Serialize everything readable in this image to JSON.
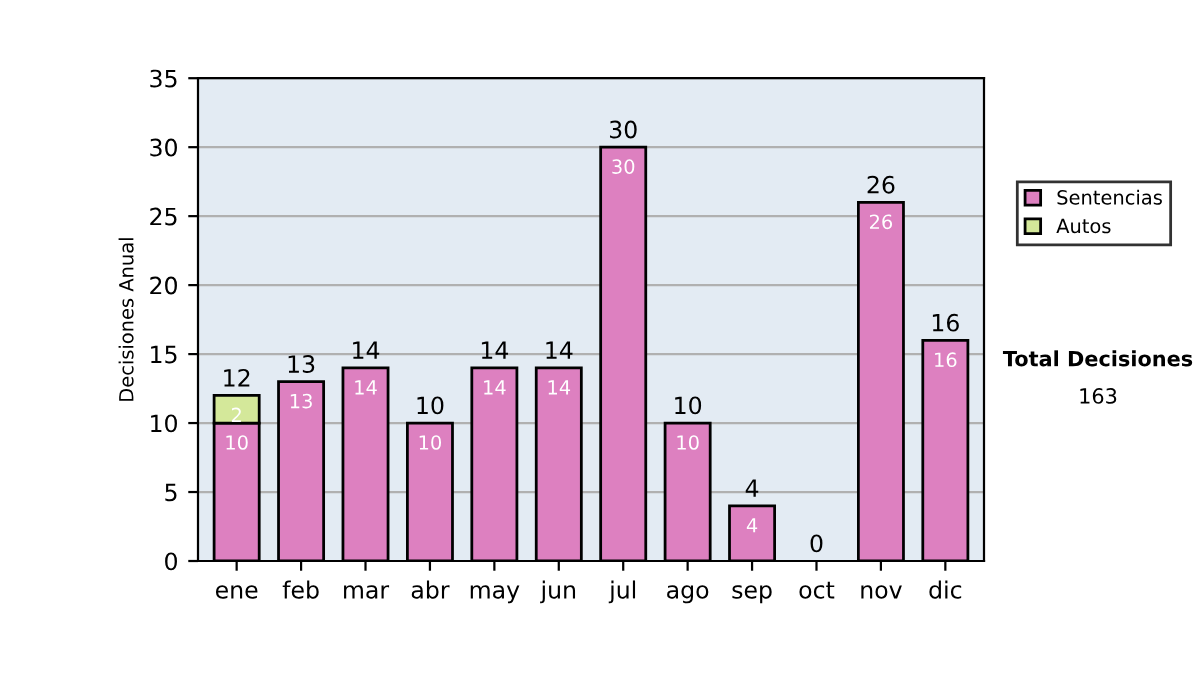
{
  "chart_data": {
    "type": "bar",
    "stacked": true,
    "ylabel": "Decisiones Anual",
    "categories": [
      "ene",
      "feb",
      "mar",
      "abr",
      "may",
      "jun",
      "jul",
      "ago",
      "sep",
      "oct",
      "nov",
      "dic"
    ],
    "series": [
      {
        "name": "Sentencias",
        "color": "#dd80c0",
        "values": [
          10,
          13,
          14,
          10,
          14,
          14,
          30,
          10,
          4,
          0,
          26,
          16
        ],
        "value_labels": [
          "10",
          "13",
          "14",
          "10",
          "14",
          "14",
          "30",
          "10",
          "4",
          null,
          "26",
          "16"
        ]
      },
      {
        "name": "Autos",
        "color": "#d4e89a",
        "values": [
          2,
          0,
          0,
          0,
          0,
          0,
          0,
          0,
          0,
          0,
          0,
          0
        ],
        "value_labels": [
          "2",
          null,
          null,
          null,
          null,
          null,
          null,
          null,
          null,
          null,
          null,
          null
        ]
      }
    ],
    "totals": [
      "12",
      "13",
      "14",
      "10",
      "14",
      "14",
      "30",
      "10",
      "4",
      "0",
      "26",
      "16"
    ],
    "ylim": [
      0,
      35
    ],
    "yticks": [
      0,
      5,
      10,
      15,
      20,
      25,
      30,
      35
    ],
    "grid": "y",
    "legend": "right",
    "annotations": [
      "Total Decisiones",
      "163"
    ]
  }
}
